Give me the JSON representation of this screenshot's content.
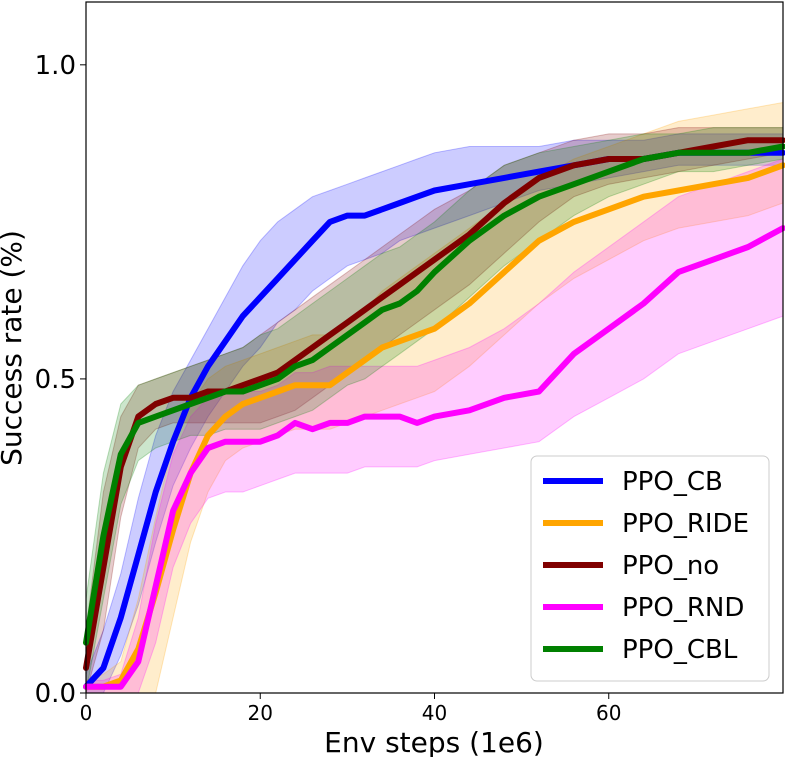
{
  "chart_data": {
    "type": "line",
    "title": "",
    "xlabel": "Env steps (1e6)",
    "ylabel": "Success rate (%)",
    "xlim": [
      0,
      80
    ],
    "ylim": [
      0,
      1.1
    ],
    "x_ticks": [
      0,
      20,
      40,
      60
    ],
    "x_tick_labels": [
      "0",
      "20",
      "40",
      "60"
    ],
    "y_ticks": [
      0.0,
      0.5,
      1.0
    ],
    "y_tick_labels": [
      "0.0",
      "0.5",
      "1.0"
    ],
    "legend_position": "lower-right",
    "series": [
      {
        "name": "PPO_CB",
        "color": "#0000ff",
        "x": [
          0,
          2,
          4,
          6,
          8,
          10,
          12,
          14,
          16,
          18,
          20,
          22,
          24,
          26,
          28,
          30,
          32,
          34,
          36,
          38,
          40,
          44,
          48,
          52,
          56,
          60,
          64,
          68,
          72,
          76,
          80
        ],
        "mean": [
          0.01,
          0.04,
          0.12,
          0.22,
          0.32,
          0.4,
          0.47,
          0.52,
          0.56,
          0.6,
          0.63,
          0.66,
          0.69,
          0.72,
          0.75,
          0.76,
          0.76,
          0.77,
          0.78,
          0.79,
          0.8,
          0.81,
          0.82,
          0.83,
          0.84,
          0.85,
          0.85,
          0.86,
          0.86,
          0.86,
          0.86
        ],
        "lower": [
          0.0,
          0.0,
          0.06,
          0.14,
          0.24,
          0.33,
          0.39,
          0.44,
          0.48,
          0.52,
          0.55,
          0.59,
          0.61,
          0.64,
          0.66,
          0.68,
          0.69,
          0.7,
          0.72,
          0.73,
          0.74,
          0.76,
          0.78,
          0.8,
          0.81,
          0.82,
          0.83,
          0.84,
          0.84,
          0.84,
          0.84
        ],
        "upper": [
          0.03,
          0.1,
          0.19,
          0.31,
          0.41,
          0.48,
          0.53,
          0.58,
          0.63,
          0.68,
          0.72,
          0.75,
          0.77,
          0.79,
          0.8,
          0.81,
          0.82,
          0.83,
          0.84,
          0.85,
          0.86,
          0.87,
          0.87,
          0.87,
          0.88,
          0.88,
          0.88,
          0.89,
          0.89,
          0.89,
          0.89
        ]
      },
      {
        "name": "PPO_RIDE",
        "color": "#ffa500",
        "x": [
          0,
          2,
          4,
          6,
          8,
          10,
          12,
          14,
          16,
          18,
          20,
          22,
          24,
          26,
          28,
          30,
          32,
          34,
          36,
          38,
          40,
          44,
          48,
          52,
          56,
          60,
          64,
          68,
          72,
          76,
          80
        ],
        "mean": [
          0.01,
          0.01,
          0.02,
          0.07,
          0.16,
          0.26,
          0.35,
          0.41,
          0.44,
          0.46,
          0.47,
          0.48,
          0.49,
          0.49,
          0.49,
          0.51,
          0.53,
          0.55,
          0.56,
          0.57,
          0.58,
          0.62,
          0.67,
          0.72,
          0.75,
          0.77,
          0.79,
          0.8,
          0.81,
          0.82,
          0.84
        ],
        "lower": [
          0.0,
          0.0,
          0.0,
          0.0,
          0.0,
          0.12,
          0.24,
          0.32,
          0.37,
          0.39,
          0.4,
          0.41,
          0.42,
          0.42,
          0.42,
          0.43,
          0.44,
          0.45,
          0.46,
          0.47,
          0.48,
          0.52,
          0.57,
          0.62,
          0.66,
          0.69,
          0.72,
          0.74,
          0.75,
          0.76,
          0.78
        ],
        "upper": [
          0.02,
          0.03,
          0.05,
          0.15,
          0.28,
          0.4,
          0.46,
          0.5,
          0.52,
          0.53,
          0.54,
          0.55,
          0.56,
          0.57,
          0.57,
          0.59,
          0.61,
          0.64,
          0.66,
          0.68,
          0.7,
          0.74,
          0.78,
          0.82,
          0.85,
          0.87,
          0.89,
          0.91,
          0.92,
          0.93,
          0.94
        ]
      },
      {
        "name": "PPO_no",
        "color": "#800000",
        "x": [
          0,
          2,
          4,
          6,
          8,
          10,
          12,
          14,
          16,
          18,
          20,
          22,
          24,
          26,
          28,
          30,
          32,
          34,
          36,
          38,
          40,
          44,
          48,
          52,
          56,
          60,
          64,
          68,
          72,
          76,
          80
        ],
        "mean": [
          0.04,
          0.2,
          0.36,
          0.44,
          0.46,
          0.47,
          0.47,
          0.48,
          0.48,
          0.49,
          0.5,
          0.51,
          0.53,
          0.55,
          0.57,
          0.59,
          0.61,
          0.63,
          0.65,
          0.67,
          0.69,
          0.73,
          0.78,
          0.82,
          0.84,
          0.85,
          0.85,
          0.86,
          0.87,
          0.88,
          0.88
        ],
        "lower": [
          0.0,
          0.1,
          0.28,
          0.39,
          0.42,
          0.43,
          0.43,
          0.43,
          0.43,
          0.43,
          0.43,
          0.44,
          0.45,
          0.47,
          0.49,
          0.51,
          0.53,
          0.55,
          0.57,
          0.59,
          0.61,
          0.65,
          0.7,
          0.75,
          0.79,
          0.81,
          0.82,
          0.83,
          0.84,
          0.85,
          0.86
        ],
        "upper": [
          0.1,
          0.32,
          0.44,
          0.49,
          0.5,
          0.51,
          0.52,
          0.53,
          0.54,
          0.55,
          0.57,
          0.59,
          0.61,
          0.63,
          0.65,
          0.67,
          0.69,
          0.71,
          0.73,
          0.75,
          0.77,
          0.8,
          0.84,
          0.86,
          0.88,
          0.89,
          0.89,
          0.9,
          0.9,
          0.9,
          0.9
        ]
      },
      {
        "name": "PPO_RND",
        "color": "#ff00ff",
        "x": [
          0,
          2,
          4,
          6,
          8,
          10,
          12,
          14,
          16,
          18,
          20,
          22,
          24,
          26,
          28,
          30,
          32,
          34,
          36,
          38,
          40,
          44,
          48,
          52,
          56,
          60,
          64,
          68,
          72,
          76,
          80
        ],
        "mean": [
          0.01,
          0.01,
          0.01,
          0.05,
          0.17,
          0.29,
          0.35,
          0.39,
          0.4,
          0.4,
          0.4,
          0.41,
          0.43,
          0.42,
          0.43,
          0.43,
          0.44,
          0.44,
          0.44,
          0.43,
          0.44,
          0.45,
          0.47,
          0.48,
          0.54,
          0.58,
          0.62,
          0.67,
          0.69,
          0.71,
          0.74
        ],
        "lower": [
          0.0,
          0.0,
          0.0,
          0.0,
          0.08,
          0.2,
          0.27,
          0.31,
          0.32,
          0.32,
          0.33,
          0.34,
          0.35,
          0.35,
          0.35,
          0.35,
          0.36,
          0.36,
          0.36,
          0.36,
          0.37,
          0.38,
          0.39,
          0.4,
          0.44,
          0.47,
          0.5,
          0.54,
          0.56,
          0.58,
          0.6
        ],
        "upper": [
          0.02,
          0.02,
          0.03,
          0.12,
          0.27,
          0.38,
          0.44,
          0.47,
          0.48,
          0.48,
          0.48,
          0.49,
          0.51,
          0.51,
          0.52,
          0.52,
          0.52,
          0.52,
          0.52,
          0.52,
          0.53,
          0.55,
          0.58,
          0.62,
          0.67,
          0.71,
          0.75,
          0.79,
          0.81,
          0.83,
          0.85
        ]
      },
      {
        "name": "PPO_CBL",
        "color": "#008000",
        "x": [
          0,
          2,
          4,
          6,
          8,
          10,
          12,
          14,
          16,
          18,
          20,
          22,
          24,
          26,
          28,
          30,
          32,
          34,
          36,
          38,
          40,
          44,
          48,
          52,
          56,
          60,
          64,
          68,
          72,
          76,
          80
        ],
        "mean": [
          0.08,
          0.25,
          0.38,
          0.43,
          0.44,
          0.45,
          0.46,
          0.47,
          0.48,
          0.48,
          0.49,
          0.5,
          0.52,
          0.53,
          0.55,
          0.57,
          0.59,
          0.61,
          0.62,
          0.64,
          0.67,
          0.72,
          0.76,
          0.79,
          0.81,
          0.83,
          0.85,
          0.86,
          0.86,
          0.86,
          0.87
        ],
        "lower": [
          0.0,
          0.15,
          0.3,
          0.37,
          0.39,
          0.4,
          0.41,
          0.41,
          0.42,
          0.42,
          0.42,
          0.43,
          0.44,
          0.45,
          0.47,
          0.49,
          0.5,
          0.52,
          0.54,
          0.56,
          0.58,
          0.63,
          0.68,
          0.72,
          0.76,
          0.79,
          0.81,
          0.83,
          0.83,
          0.84,
          0.85
        ],
        "upper": [
          0.15,
          0.35,
          0.46,
          0.49,
          0.5,
          0.51,
          0.52,
          0.53,
          0.54,
          0.55,
          0.57,
          0.58,
          0.6,
          0.62,
          0.64,
          0.66,
          0.68,
          0.7,
          0.71,
          0.73,
          0.75,
          0.8,
          0.84,
          0.86,
          0.87,
          0.88,
          0.89,
          0.89,
          0.9,
          0.9,
          0.9
        ]
      }
    ]
  }
}
